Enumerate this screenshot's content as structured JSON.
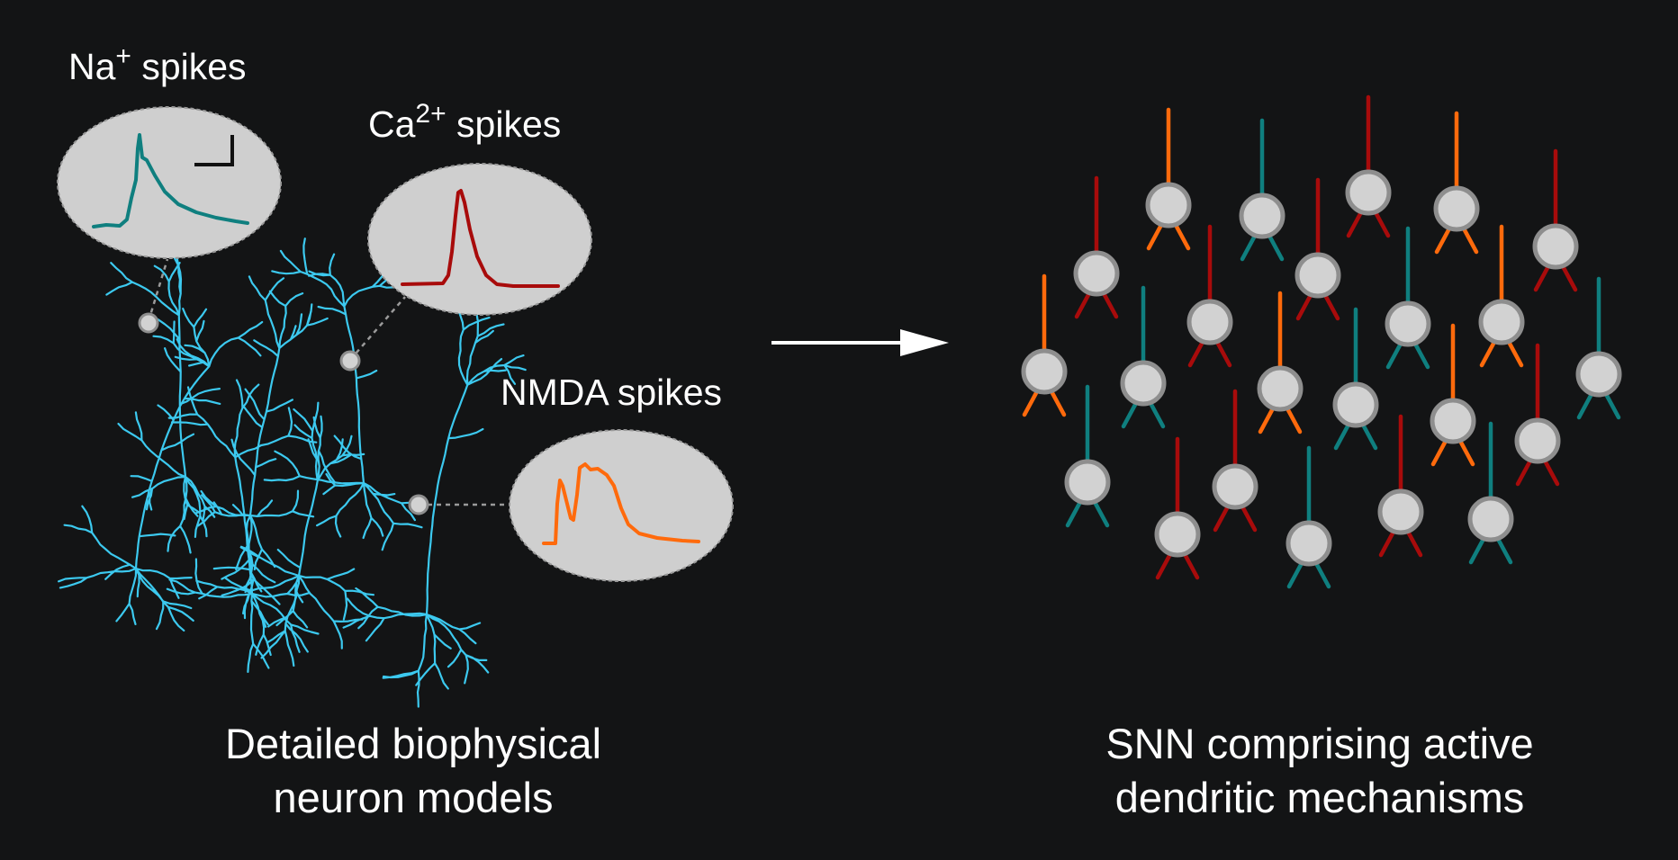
{
  "labels": {
    "na_base": "Na",
    "na_sup": "+",
    "ca_base": "Ca",
    "ca_sup": "2+",
    "spikes_word": " spikes",
    "nmda": "NMDA spikes"
  },
  "captions": {
    "left_line1": "Detailed biophysical",
    "left_line2": "neuron models",
    "right_line1": "SNN comprising active",
    "right_line2": "dendritic mechanisms"
  },
  "colors": {
    "background": "#131415",
    "dendrite": "#3cc9ef",
    "na_trace": "#0f7f7f",
    "ca_trace": "#a80b0b",
    "nmda_trace": "#ff6a0c",
    "inset_fill": "#cfcfcf",
    "soma_fill": "#d2d2d2",
    "soma_stroke": "#8e8e8e",
    "arrow": "#ffffff"
  },
  "network": {
    "neuron_color_order": [
      "orange",
      "teal",
      "red",
      "orange",
      "red",
      "red",
      "red",
      "teal",
      "teal",
      "orange",
      "red",
      "orange",
      "teal",
      "teal",
      "red",
      "teal",
      "teal",
      "orange",
      "teal",
      "orange",
      "red",
      "red",
      "red",
      "teal",
      "teal",
      "red",
      "teal"
    ]
  }
}
